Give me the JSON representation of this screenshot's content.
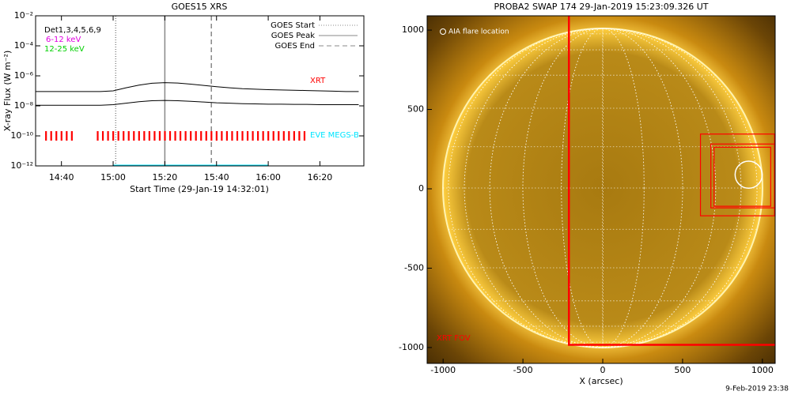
{
  "chart_data": [
    {
      "type": "line",
      "title": "GOES15 XRS",
      "xlabel": "Start Time (29-Jan-19 14:32:01)",
      "ylabel": "X-ray Flux (W m⁻²)",
      "log_y": true,
      "ylim": [
        1e-12,
        0.01
      ],
      "yticks": [
        {
          "value": 1e-12,
          "label": "10⁻¹²"
        },
        {
          "value": 1e-10,
          "label": "10⁻¹⁰"
        },
        {
          "value": 1e-08,
          "label": "10⁻⁸"
        },
        {
          "value": 1e-06,
          "label": "10⁻⁶"
        },
        {
          "value": 0.0001,
          "label": "10⁻⁴"
        },
        {
          "value": 0.01,
          "label": "10⁻²"
        }
      ],
      "xlim": [
        "14:30",
        "16:37"
      ],
      "xticks": [
        "14:40",
        "15:00",
        "15:20",
        "15:40",
        "16:00",
        "16:20"
      ],
      "series": [
        {
          "color": "#000000",
          "x": [
            "14:30",
            "14:35",
            "14:40",
            "14:45",
            "14:50",
            "14:55",
            "15:00",
            "15:05",
            "15:10",
            "15:15",
            "15:20",
            "15:25",
            "15:30",
            "15:35",
            "15:40",
            "15:45",
            "15:50",
            "15:55",
            "16:00",
            "16:05",
            "16:10",
            "16:15",
            "16:20",
            "16:25",
            "16:30",
            "16:35"
          ],
          "values": [
            9e-08,
            9e-08,
            9e-08,
            9e-08,
            9e-08,
            9e-08,
            1e-07,
            1.6e-07,
            2.4e-07,
            3.2e-07,
            3.5e-07,
            3.3e-07,
            2.8e-07,
            2.3e-07,
            1.9e-07,
            1.6e-07,
            1.4e-07,
            1.3e-07,
            1.2e-07,
            1.15e-07,
            1.1e-07,
            1.05e-07,
            1e-07,
            9.5e-08,
            9e-08,
            9e-08
          ]
        },
        {
          "color": "#000000",
          "x": [
            "14:30",
            "14:35",
            "14:40",
            "14:45",
            "14:50",
            "14:55",
            "15:00",
            "15:05",
            "15:10",
            "15:15",
            "15:20",
            "15:25",
            "15:30",
            "15:35",
            "15:40",
            "15:45",
            "15:50",
            "15:55",
            "16:00",
            "16:05",
            "16:10",
            "16:15",
            "16:20",
            "16:25",
            "16:30",
            "16:35"
          ],
          "values": [
            1.1e-08,
            1.1e-08,
            1.1e-08,
            1.1e-08,
            1.1e-08,
            1.1e-08,
            1.2e-08,
            1.5e-08,
            1.9e-08,
            2.2e-08,
            2.3e-08,
            2.2e-08,
            2e-08,
            1.8e-08,
            1.6e-08,
            1.5e-08,
            1.4e-08,
            1.35e-08,
            1.3e-08,
            1.3e-08,
            1.25e-08,
            1.25e-08,
            1.2e-08,
            1.2e-08,
            1.2e-08,
            1.2e-08
          ]
        },
        {
          "style": "ticks",
          "color": "#ff0000",
          "x": [
            "14:34",
            "14:36",
            "14:38",
            "14:40",
            "14:42",
            "14:44",
            "14:54",
            "14:56",
            "14:58",
            "15:00",
            "15:02",
            "15:04",
            "15:06",
            "15:08",
            "15:10",
            "15:12",
            "15:14",
            "15:16",
            "15:18",
            "15:20",
            "15:22",
            "15:24",
            "15:26",
            "15:28",
            "15:30",
            "15:32",
            "15:34",
            "15:36",
            "15:38",
            "15:40",
            "15:42",
            "15:44",
            "15:46",
            "15:48",
            "15:50",
            "15:52",
            "15:54",
            "15:56",
            "15:58",
            "16:00",
            "16:02",
            "16:04",
            "16:06",
            "16:08",
            "16:10",
            "16:12",
            "16:14"
          ],
          "values": [
            1e-10,
            1e-10,
            1e-10,
            1e-10,
            1e-10,
            1e-10,
            1e-10,
            1e-10,
            1e-10,
            1e-10,
            1e-10,
            1e-10,
            1e-10,
            1e-10,
            1e-10,
            1e-10,
            1e-10,
            1e-10,
            1e-10,
            1e-10,
            1e-10,
            1e-10,
            1e-10,
            1e-10,
            1e-10,
            1e-10,
            1e-10,
            1e-10,
            1e-10,
            1e-10,
            1e-10,
            1e-10,
            1e-10,
            1e-10,
            1e-10,
            1e-10,
            1e-10,
            1e-10,
            1e-10,
            1e-10,
            1e-10,
            1e-10,
            1e-10,
            1e-10,
            1e-10,
            1e-10,
            1e-10
          ]
        },
        {
          "color": "#00e5ff",
          "x": [
            "15:00",
            "16:00"
          ],
          "values": [
            1e-12,
            1e-12
          ]
        }
      ],
      "events": [
        {
          "name": "GOES Start",
          "x": "15:01",
          "dash": "1,2",
          "color": "#888888"
        },
        {
          "name": "GOES Peak",
          "x": "15:20",
          "dash": "",
          "color": "#888888"
        },
        {
          "name": "GOES End",
          "x": "15:38",
          "dash": "6,4",
          "color": "#888888"
        }
      ],
      "legend": "upper right",
      "annotations": [
        {
          "text": "Det1,3,4,5,6,9",
          "color": "#000000"
        },
        {
          "text": "6-12 keV",
          "color": "#e000e0"
        },
        {
          "text": "12-25 keV",
          "color": "#00d000"
        },
        {
          "text": "XRT",
          "color": "#ff0000"
        },
        {
          "text": "EVE MEGS-B",
          "color": "#00e5ff"
        }
      ]
    },
    {
      "type": "image",
      "title": "PROBA2 SWAP 174 29-Jan-2019 15:23:09.326 UT",
      "xlabel": "X (arcsec)",
      "xlim": [
        -1100,
        1080
      ],
      "ylim": [
        -1100,
        1090
      ],
      "xticks": [
        -1000,
        -500,
        0,
        500,
        1000
      ],
      "yticks": [
        -1000,
        -500,
        0,
        500,
        1000
      ],
      "boxes": [
        {
          "name": "XRT FOV",
          "x": [
            -212,
            1100
          ],
          "y": [
            -983,
            1100
          ],
          "color": "#ff0000"
        },
        {
          "x": [
            612,
            1076
          ],
          "y": [
            -170,
            345
          ],
          "color": "#ff0000"
        },
        {
          "x": [
            677,
            1076
          ],
          "y": [
            -120,
            282
          ],
          "color": "#ff0000"
        },
        {
          "x": [
            697,
            1052
          ],
          "y": [
            -110,
            262
          ],
          "color": "#ff0000"
        }
      ],
      "flare": {
        "name": "AIA flare location",
        "x": 914,
        "y": 89,
        "r": 85
      },
      "footer": "9-Feb-2019 23:38"
    }
  ]
}
